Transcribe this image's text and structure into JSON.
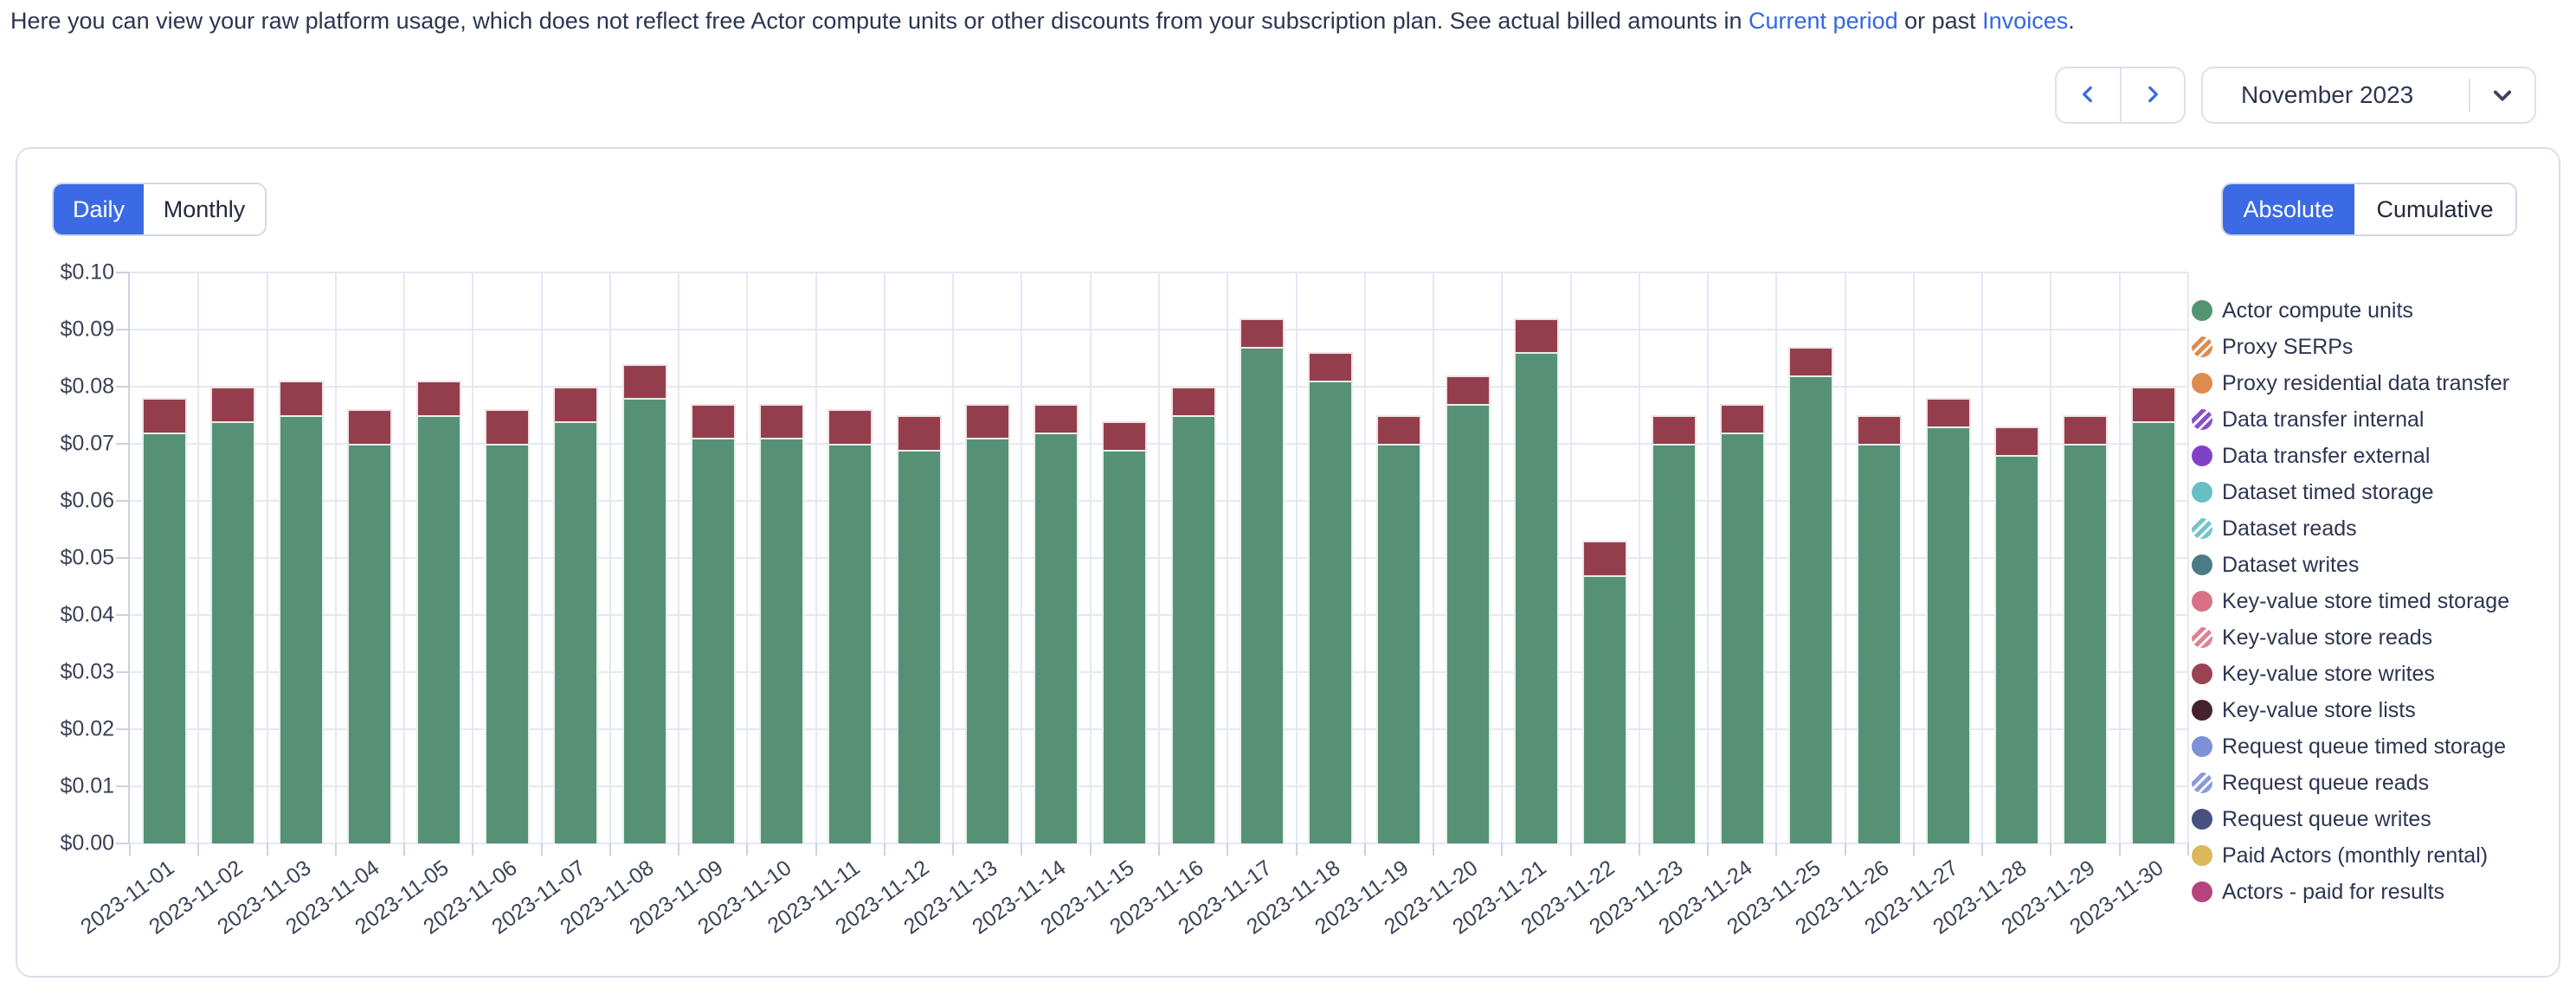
{
  "intro": {
    "text_before": "Here you can view your raw platform usage, which does not reflect free Actor compute units or other discounts from your subscription plan. See actual billed amounts in ",
    "link_current_period": "Current period",
    "text_between": " or past ",
    "link_invoices": "Invoices",
    "text_after": "."
  },
  "period_nav": {
    "prev_icon": "chevron-left-icon",
    "next_icon": "chevron-right-icon",
    "selected_period": "November 2023",
    "dropdown_icon": "chevron-down-icon"
  },
  "toggles": {
    "granularity": {
      "options": [
        "Daily",
        "Monthly"
      ],
      "selected": "Daily"
    },
    "mode": {
      "options": [
        "Absolute",
        "Cumulative"
      ],
      "selected": "Absolute"
    }
  },
  "colors": {
    "accent_blue": "#3c6ae5",
    "link_blue": "#3566e1",
    "text_dark": "#2d3551",
    "card_border": "#d9deec",
    "gridline": "#e5e8f3",
    "axis": "#ccd2e2",
    "bar_green": "#569177",
    "bar_red": "#943e4d"
  },
  "legend": [
    {
      "label": "Actor compute units",
      "color": "#539471",
      "pattern": "solid"
    },
    {
      "label": "Proxy SERPs",
      "color": "#df8a4e",
      "pattern": "striped"
    },
    {
      "label": "Proxy residential data transfer",
      "color": "#df8a4e",
      "pattern": "solid"
    },
    {
      "label": "Data transfer internal",
      "color": "#8a4fc9",
      "pattern": "striped"
    },
    {
      "label": "Data transfer external",
      "color": "#8041c8",
      "pattern": "solid"
    },
    {
      "label": "Dataset timed storage",
      "color": "#69bec3",
      "pattern": "solid"
    },
    {
      "label": "Dataset reads",
      "color": "#74c4c9",
      "pattern": "striped"
    },
    {
      "label": "Dataset writes",
      "color": "#4b7c85",
      "pattern": "solid"
    },
    {
      "label": "Key-value store timed storage",
      "color": "#d87187",
      "pattern": "solid"
    },
    {
      "label": "Key-value store reads",
      "color": "#dc8295",
      "pattern": "striped"
    },
    {
      "label": "Key-value store writes",
      "color": "#9b4252",
      "pattern": "solid"
    },
    {
      "label": "Key-value store lists",
      "color": "#45222e",
      "pattern": "solid"
    },
    {
      "label": "Request queue timed storage",
      "color": "#7e90d6",
      "pattern": "solid"
    },
    {
      "label": "Request queue reads",
      "color": "#8a9ada",
      "pattern": "striped"
    },
    {
      "label": "Request queue writes",
      "color": "#46517f",
      "pattern": "solid"
    },
    {
      "label": "Paid Actors (monthly rental)",
      "color": "#dcb85b",
      "pattern": "solid"
    },
    {
      "label": "Actors - paid for results",
      "color": "#b5437e",
      "pattern": "solid"
    }
  ],
  "chart_data": {
    "type": "bar",
    "stacked": true,
    "categories": [
      "2023-11-01",
      "2023-11-02",
      "2023-11-03",
      "2023-11-04",
      "2023-11-05",
      "2023-11-06",
      "2023-11-07",
      "2023-11-08",
      "2023-11-09",
      "2023-11-10",
      "2023-11-11",
      "2023-11-12",
      "2023-11-13",
      "2023-11-14",
      "2023-11-15",
      "2023-11-16",
      "2023-11-17",
      "2023-11-18",
      "2023-11-19",
      "2023-11-20",
      "2023-11-21",
      "2023-11-22",
      "2023-11-23",
      "2023-11-24",
      "2023-11-25",
      "2023-11-26",
      "2023-11-27",
      "2023-11-28",
      "2023-11-29",
      "2023-11-30"
    ],
    "series": [
      {
        "name": "Actor compute units",
        "color": "#569177",
        "values": [
          0.072,
          0.074,
          0.075,
          0.07,
          0.075,
          0.07,
          0.074,
          0.078,
          0.071,
          0.071,
          0.07,
          0.069,
          0.071,
          0.072,
          0.069,
          0.075,
          0.087,
          0.081,
          0.07,
          0.077,
          0.086,
          0.047,
          0.07,
          0.072,
          0.082,
          0.07,
          0.073,
          0.068,
          0.07,
          0.074
        ]
      },
      {
        "name": "Key-value store writes",
        "color": "#943e4d",
        "values": [
          0.006,
          0.006,
          0.006,
          0.006,
          0.006,
          0.006,
          0.006,
          0.006,
          0.006,
          0.006,
          0.006,
          0.006,
          0.006,
          0.005,
          0.005,
          0.005,
          0.005,
          0.005,
          0.005,
          0.005,
          0.006,
          0.006,
          0.005,
          0.005,
          0.005,
          0.005,
          0.005,
          0.005,
          0.005,
          0.006
        ]
      }
    ],
    "y_ticks": [
      "$0.00",
      "$0.01",
      "$0.02",
      "$0.03",
      "$0.04",
      "$0.05",
      "$0.06",
      "$0.07",
      "$0.08",
      "$0.09",
      "$0.10"
    ],
    "ylim": [
      0,
      0.1
    ],
    "xlabel": "",
    "ylabel": "",
    "grid": true,
    "legend_position": "right"
  }
}
